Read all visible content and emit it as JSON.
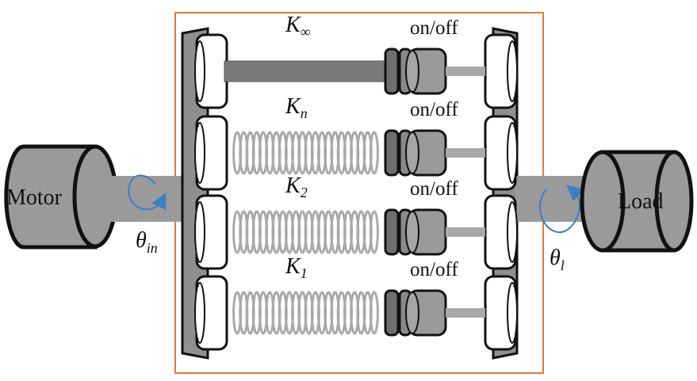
{
  "labels": {
    "motor": "Motor",
    "load": "Load",
    "theta_in": {
      "symbol": "θ",
      "sub": "in"
    },
    "theta_l": {
      "symbol": "θ",
      "sub": "l"
    }
  },
  "branches": [
    {
      "k_symbol": "K",
      "k_sub": "∞",
      "switch_label": "on/off",
      "type": "rigid"
    },
    {
      "k_symbol": "K",
      "k_sub": "n",
      "switch_label": "on/off",
      "type": "spring"
    },
    {
      "k_symbol": "K",
      "k_sub": "2",
      "switch_label": "on/off",
      "type": "spring"
    },
    {
      "k_symbol": "K",
      "k_sub": "1",
      "switch_label": "on/off",
      "type": "spring"
    }
  ],
  "colors": {
    "housing_border": "#e07a3a",
    "body_gray": "#9a9a9a",
    "rod_gray": "#7a7a7a",
    "spring_gray": "#a9a9a9",
    "rotation_arrow": "#3b7fc4",
    "outline": "#111111"
  }
}
